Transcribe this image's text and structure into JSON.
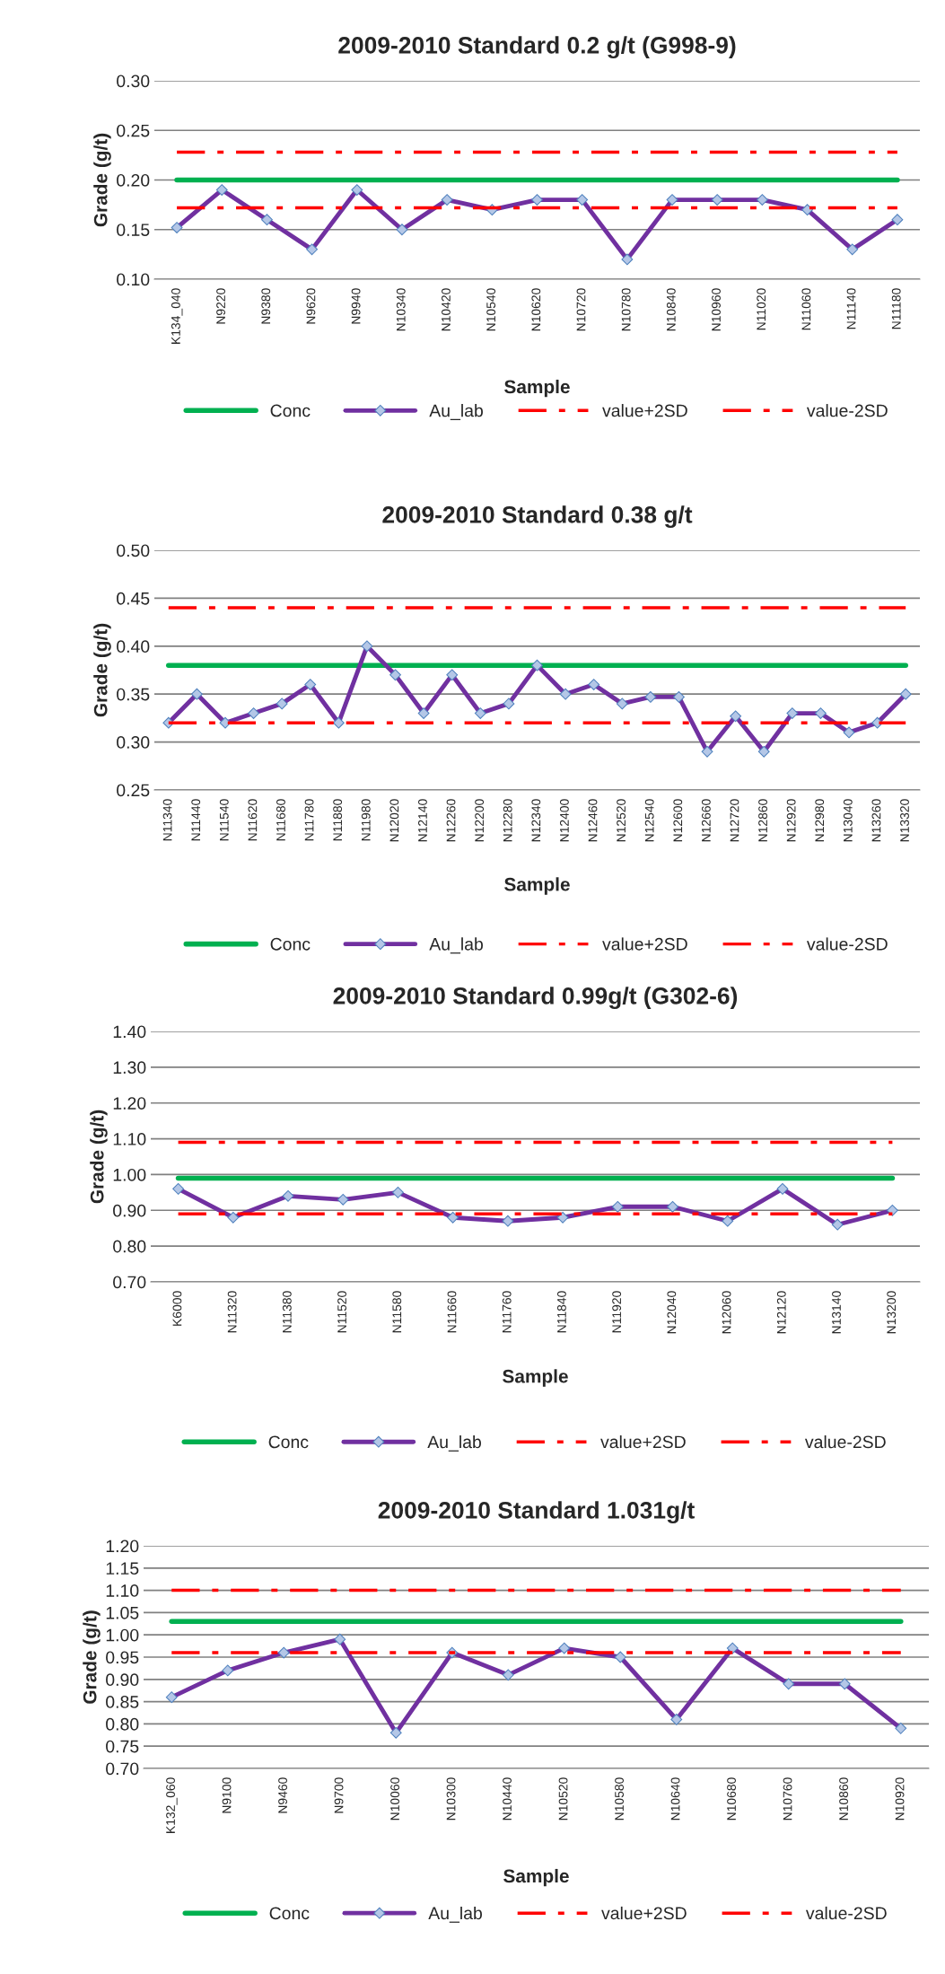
{
  "chart_data": [
    {
      "type": "line",
      "title": "2009-2010 Standard 0.2 g/t (G998-9)",
      "xlabel": "Sample",
      "ylabel": "Grade (g/t)",
      "categories": [
        "K134_040",
        "N9220",
        "N9380",
        "N9620",
        "N9940",
        "N10340",
        "N10420",
        "N10540",
        "N10620",
        "N10720",
        "N10780",
        "N10840",
        "N10960",
        "N11020",
        "N11060",
        "N11140",
        "N11180"
      ],
      "series": [
        {
          "name": "Conc",
          "color": "#00b050",
          "marker": "none",
          "line_style": "solid",
          "values": [
            0.2,
            0.2,
            0.2,
            0.2,
            0.2,
            0.2,
            0.2,
            0.2,
            0.2,
            0.2,
            0.2,
            0.2,
            0.2,
            0.2,
            0.2,
            0.2,
            0.2
          ]
        },
        {
          "name": "Au_lab",
          "color": "#7030a0",
          "marker": "diamond",
          "line_style": "solid",
          "values": [
            0.152,
            0.19,
            0.16,
            0.13,
            0.19,
            0.15,
            0.18,
            0.17,
            0.18,
            0.18,
            0.12,
            0.18,
            0.18,
            0.18,
            0.17,
            0.13,
            0.16
          ]
        },
        {
          "name": "value+2SD",
          "color": "#ff0000",
          "marker": "none",
          "line_style": "dashed",
          "values": [
            0.228,
            0.228,
            0.228,
            0.228,
            0.228,
            0.228,
            0.228,
            0.228,
            0.228,
            0.228,
            0.228,
            0.228,
            0.228,
            0.228,
            0.228,
            0.228,
            0.228
          ]
        },
        {
          "name": "value-2SD",
          "color": "#ff0000",
          "marker": "none",
          "line_style": "dashed",
          "values": [
            0.172,
            0.172,
            0.172,
            0.172,
            0.172,
            0.172,
            0.172,
            0.172,
            0.172,
            0.172,
            0.172,
            0.172,
            0.172,
            0.172,
            0.172,
            0.172,
            0.172
          ]
        }
      ],
      "ylim": [
        0.1,
        0.3
      ],
      "yticks": [
        {
          "value": 0.1,
          "label": "0.10"
        },
        {
          "value": 0.15,
          "label": "0.15"
        },
        {
          "value": 0.2,
          "label": "0.20"
        },
        {
          "value": 0.25,
          "label": "0.25"
        },
        {
          "value": 0.3,
          "label": "0.30"
        }
      ],
      "grid": "y",
      "legend": "bottom"
    },
    {
      "type": "line",
      "title": "2009-2010 Standard 0.38 g/t",
      "xlabel": "Sample",
      "ylabel": "Grade (g/t)",
      "categories": [
        "N11340",
        "N11440",
        "N11540",
        "N11620",
        "N11680",
        "N11780",
        "N11880",
        "N11980",
        "N12020",
        "N12140",
        "N12260",
        "N12200",
        "N12280",
        "N12340",
        "N12400",
        "N12460",
        "N12520",
        "N12540",
        "N12600",
        "N12660",
        "N12720",
        "N12860",
        "N12920",
        "N12980",
        "N13040",
        "N13260",
        "N13320"
      ],
      "series": [
        {
          "name": "Conc",
          "color": "#00b050",
          "marker": "none",
          "line_style": "solid",
          "values": [
            0.38,
            0.38,
            0.38,
            0.38,
            0.38,
            0.38,
            0.38,
            0.38,
            0.38,
            0.38,
            0.38,
            0.38,
            0.38,
            0.38,
            0.38,
            0.38,
            0.38,
            0.38,
            0.38,
            0.38,
            0.38,
            0.38,
            0.38,
            0.38,
            0.38,
            0.38,
            0.38
          ]
        },
        {
          "name": "Au_lab",
          "color": "#7030a0",
          "marker": "diamond",
          "line_style": "solid",
          "values": [
            0.32,
            0.35,
            0.32,
            0.33,
            0.34,
            0.36,
            0.32,
            0.4,
            0.37,
            0.33,
            0.37,
            0.33,
            0.34,
            0.38,
            0.35,
            0.36,
            0.34,
            0.347,
            0.347,
            0.29,
            0.327,
            0.29,
            0.33,
            0.33,
            0.31,
            0.32,
            0.35
          ]
        },
        {
          "name": "value+2SD",
          "color": "#ff0000",
          "marker": "none",
          "line_style": "dashed",
          "values": [
            0.44,
            0.44,
            0.44,
            0.44,
            0.44,
            0.44,
            0.44,
            0.44,
            0.44,
            0.44,
            0.44,
            0.44,
            0.44,
            0.44,
            0.44,
            0.44,
            0.44,
            0.44,
            0.44,
            0.44,
            0.44,
            0.44,
            0.44,
            0.44,
            0.44,
            0.44,
            0.44
          ]
        },
        {
          "name": "value-2SD",
          "color": "#ff0000",
          "marker": "none",
          "line_style": "dashed",
          "values": [
            0.32,
            0.32,
            0.32,
            0.32,
            0.32,
            0.32,
            0.32,
            0.32,
            0.32,
            0.32,
            0.32,
            0.32,
            0.32,
            0.32,
            0.32,
            0.32,
            0.32,
            0.32,
            0.32,
            0.32,
            0.32,
            0.32,
            0.32,
            0.32,
            0.32,
            0.32,
            0.32
          ]
        }
      ],
      "ylim": [
        0.25,
        0.5
      ],
      "yticks": [
        {
          "value": 0.25,
          "label": "0.25"
        },
        {
          "value": 0.3,
          "label": "0.30"
        },
        {
          "value": 0.35,
          "label": "0.35"
        },
        {
          "value": 0.4,
          "label": "0.40"
        },
        {
          "value": 0.45,
          "label": "0.45"
        },
        {
          "value": 0.5,
          "label": "0.50"
        }
      ],
      "grid": "y",
      "legend": "bottom"
    },
    {
      "type": "line",
      "title": "2009-2010 Standard 0.99g/t (G302-6)",
      "xlabel": "Sample",
      "ylabel": "Grade (g/t)",
      "categories": [
        "K6000",
        "N11320",
        "N11380",
        "N11520",
        "N11580",
        "N11660",
        "N11760",
        "N11840",
        "N11920",
        "N12040",
        "N12060",
        "N12120",
        "N13140",
        "N13200"
      ],
      "series": [
        {
          "name": "Conc",
          "color": "#00b050",
          "marker": "none",
          "line_style": "solid",
          "values": [
            0.99,
            0.99,
            0.99,
            0.99,
            0.99,
            0.99,
            0.99,
            0.99,
            0.99,
            0.99,
            0.99,
            0.99,
            0.99,
            0.99
          ]
        },
        {
          "name": "Au_lab",
          "color": "#7030a0",
          "marker": "diamond",
          "line_style": "solid",
          "values": [
            0.96,
            0.88,
            0.94,
            0.93,
            0.95,
            0.88,
            0.87,
            0.88,
            0.91,
            0.91,
            0.87,
            0.96,
            0.86,
            0.9
          ]
        },
        {
          "name": "value+2SD",
          "color": "#ff0000",
          "marker": "none",
          "line_style": "dashed",
          "values": [
            1.09,
            1.09,
            1.09,
            1.09,
            1.09,
            1.09,
            1.09,
            1.09,
            1.09,
            1.09,
            1.09,
            1.09,
            1.09,
            1.09
          ]
        },
        {
          "name": "value-2SD",
          "color": "#ff0000",
          "marker": "none",
          "line_style": "dashed",
          "values": [
            0.89,
            0.89,
            0.89,
            0.89,
            0.89,
            0.89,
            0.89,
            0.89,
            0.89,
            0.89,
            0.89,
            0.89,
            0.89,
            0.89
          ]
        }
      ],
      "ylim": [
        0.7,
        1.4
      ],
      "yticks": [
        {
          "value": 0.7,
          "label": "0.70"
        },
        {
          "value": 0.8,
          "label": "0.80"
        },
        {
          "value": 0.9,
          "label": "0.90"
        },
        {
          "value": 1.0,
          "label": "1.00"
        },
        {
          "value": 1.1,
          "label": "1.10"
        },
        {
          "value": 1.2,
          "label": "1.20"
        },
        {
          "value": 1.3,
          "label": "1.30"
        },
        {
          "value": 1.4,
          "label": "1.40"
        }
      ],
      "grid": "y",
      "legend": "bottom"
    },
    {
      "type": "line",
      "title": "2009-2010 Standard 1.031g/t",
      "xlabel": "Sample",
      "ylabel": "Grade (g/t)",
      "categories": [
        "K132_060",
        "N9100",
        "N9460",
        "N9700",
        "N10060",
        "N10300",
        "N10440",
        "N10520",
        "N10580",
        "N10640",
        "N10680",
        "N10760",
        "N10860",
        "N10920"
      ],
      "series": [
        {
          "name": "Conc",
          "color": "#00b050",
          "marker": "none",
          "line_style": "solid",
          "values": [
            1.03,
            1.03,
            1.03,
            1.03,
            1.03,
            1.03,
            1.03,
            1.03,
            1.03,
            1.03,
            1.03,
            1.03,
            1.03,
            1.03
          ]
        },
        {
          "name": "Au_lab",
          "color": "#7030a0",
          "marker": "diamond",
          "line_style": "solid",
          "values": [
            0.86,
            0.92,
            0.96,
            0.99,
            0.78,
            0.96,
            0.91,
            0.97,
            0.95,
            0.81,
            0.97,
            0.89,
            0.89,
            0.79
          ]
        },
        {
          "name": "value+2SD",
          "color": "#ff0000",
          "marker": "none",
          "line_style": "dashed",
          "values": [
            1.1,
            1.1,
            1.1,
            1.1,
            1.1,
            1.1,
            1.1,
            1.1,
            1.1,
            1.1,
            1.1,
            1.1,
            1.1,
            1.1
          ]
        },
        {
          "name": "value-2SD",
          "color": "#ff0000",
          "marker": "none",
          "line_style": "dashed",
          "values": [
            0.96,
            0.96,
            0.96,
            0.96,
            0.96,
            0.96,
            0.96,
            0.96,
            0.96,
            0.96,
            0.96,
            0.96,
            0.96,
            0.96
          ]
        }
      ],
      "ylim": [
        0.7,
        1.2
      ],
      "yticks": [
        {
          "value": 0.7,
          "label": "0.70"
        },
        {
          "value": 0.75,
          "label": "0.75"
        },
        {
          "value": 0.8,
          "label": "0.80"
        },
        {
          "value": 0.85,
          "label": "0.85"
        },
        {
          "value": 0.9,
          "label": "0.90"
        },
        {
          "value": 0.95,
          "label": "0.95"
        },
        {
          "value": 1.0,
          "label": "1.00"
        },
        {
          "value": 1.05,
          "label": "1.05"
        },
        {
          "value": 1.1,
          "label": "1.10"
        },
        {
          "value": 1.15,
          "label": "1.15"
        },
        {
          "value": 1.2,
          "label": "1.20"
        }
      ],
      "grid": "y",
      "legend": "bottom"
    }
  ]
}
